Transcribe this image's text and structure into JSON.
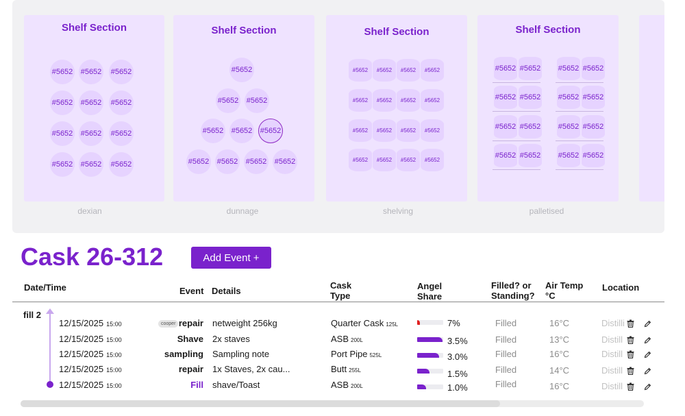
{
  "shelves": [
    {
      "title": "Shelf Section",
      "caption": "dexian",
      "cask_label": "#5652",
      "layout": "grid-round"
    },
    {
      "title": "Shelf Section",
      "caption": "dunnage",
      "cask_label": "#5652",
      "layout": "pyramid"
    },
    {
      "title": "Shelf Section",
      "caption": "shelving",
      "cask_label": "#5652",
      "layout": "barrel-grid"
    },
    {
      "title": "Shelf Section",
      "caption": "palletised",
      "cask_label": "#5652",
      "layout": "pallet"
    }
  ],
  "cask": {
    "title": "Cask 26-312",
    "add_event_label": "Add Event +"
  },
  "table": {
    "headers": {
      "datetime": "Date/Time",
      "event": "Event",
      "details": "Details",
      "cask_type_1": "Cask",
      "cask_type_2": "Type",
      "angel_1": "Angel",
      "angel_2": "Share",
      "filled_1": "Filled? or",
      "filled_2": "Standing?",
      "temp_1": "Air Temp",
      "temp_2": "°C",
      "location": "Location"
    },
    "group_label": "fill 2",
    "rows": [
      {
        "date": "12/15/2025",
        "time": "15:00",
        "tag": "cooper",
        "event": "repair",
        "details": "netweight 256kg",
        "cask_type": "Quarter Cask",
        "cask_size": "125L",
        "angel_share": "7%",
        "angel_value": 7,
        "filled": "Filled",
        "temp": "16°C",
        "location": "Distilli"
      },
      {
        "date": "12/15/2025",
        "time": "15:00",
        "tag": "",
        "event": "Shave",
        "details": "2x staves",
        "cask_type": "ASB",
        "cask_size": "200L",
        "angel_share": "3.5%",
        "angel_value": 3.5,
        "filled": "Filled",
        "temp": "13°C",
        "location": "Distill"
      },
      {
        "date": "12/15/2025",
        "time": "15:00",
        "tag": "",
        "event": "sampling",
        "details": "Sampling note",
        "cask_type": "Port Pipe",
        "cask_size": "525L",
        "angel_share": "3.0%",
        "angel_value": 3.0,
        "filled": "Filled",
        "temp": "16°C",
        "location": "Distill"
      },
      {
        "date": "12/15/2025",
        "time": "15:00",
        "tag": "",
        "event": "repair",
        "details": "1x Staves, 2x cau...",
        "cask_type": "Butt",
        "cask_size": "255L",
        "angel_share": "1.5%",
        "angel_value": 1.5,
        "filled": "Filled",
        "temp": "14°C",
        "location": "Distill"
      },
      {
        "date": "12/15/2025",
        "time": "15:00",
        "tag": "",
        "event": "Fill",
        "details": "shave/Toast",
        "cask_type": "ASB",
        "cask_size": "200L",
        "angel_share": "1.0%",
        "angel_value": 1.0,
        "filled": "Filled",
        "temp": "16°C",
        "location": "Distill"
      }
    ]
  },
  "icons": {
    "delete": "trash-icon",
    "edit": "pencil-icon"
  },
  "colors": {
    "accent": "#7a22cc",
    "panel_bg": "#efe3ff",
    "cask_bg": "#e6d3ff",
    "warning": "#e02020"
  }
}
